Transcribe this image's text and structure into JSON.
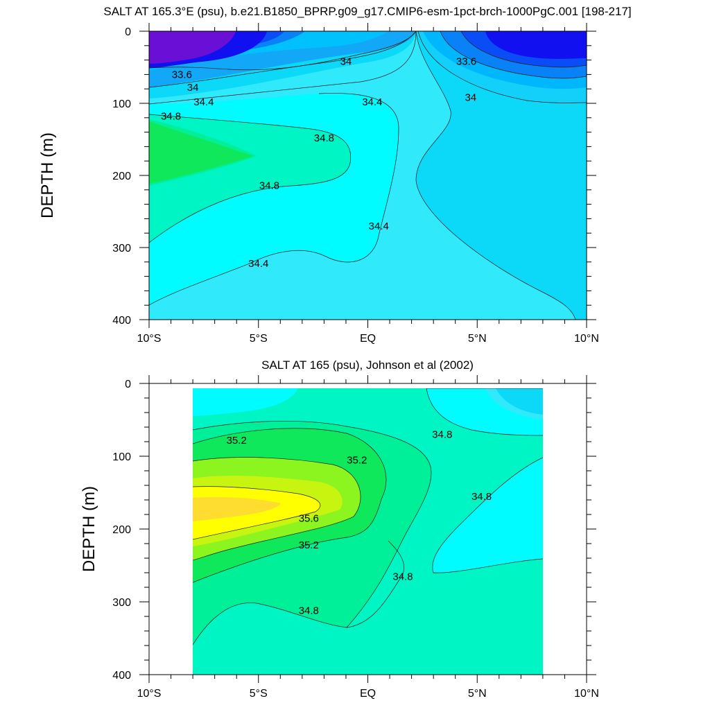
{
  "chart_data": [
    {
      "type": "heatmap",
      "title": "SALT AT 165.3°E (psu), b.e21.B1850_BPRP.g09_g17.CMIP6-esm-1pct-brch-1000PgC.001 [198-217]",
      "ylabel": "DEPTH (m)",
      "xlabel": "",
      "xlim": [
        -10,
        10
      ],
      "ylim": [
        400,
        0
      ],
      "x_ticks": [
        "10°S",
        "5°S",
        "EQ",
        "5°N",
        "10°N"
      ],
      "y_ticks": [
        "0",
        "100",
        "200",
        "300",
        "400"
      ],
      "colors": {
        "lt33_4": "#6a0fd6",
        "33_4": "#1010f0",
        "33_6": "#0a4cf5",
        "33_8": "#0a82f7",
        "34_0": "#12a8f7",
        "34_2": "#00c1fc",
        "34_4": "#0bd9f7",
        "34_6": "#30eafc",
        "34_8": "#00fcff",
        "35_0": "#00f5c4",
        "35_2": "#00f09a",
        "green": "#10e85c"
      },
      "contour_labels": [
        {
          "text": "33.6",
          "x": -8.5,
          "y": 60
        },
        {
          "text": "34",
          "x": -8.0,
          "y": 78
        },
        {
          "text": "34.4",
          "x": -7.5,
          "y": 98
        },
        {
          "text": "34.8",
          "x": -9.0,
          "y": 118
        },
        {
          "text": "34",
          "x": -1.0,
          "y": 42
        },
        {
          "text": "34.4",
          "x": 0.2,
          "y": 98
        },
        {
          "text": "34.8",
          "x": -2.0,
          "y": 148
        },
        {
          "text": "34.8",
          "x": -4.5,
          "y": 214
        },
        {
          "text": "34.4",
          "x": 0.5,
          "y": 270
        },
        {
          "text": "34.4",
          "x": -5.0,
          "y": 322
        },
        {
          "text": "33.6",
          "x": 4.5,
          "y": 42
        },
        {
          "text": "34",
          "x": 4.7,
          "y": 92
        }
      ]
    },
    {
      "type": "heatmap",
      "title": "SALT AT 165 (psu), Johnson et al (2002)",
      "ylabel": "DEPTH (m)",
      "xlabel": "",
      "xlim": [
        -10,
        10
      ],
      "ylim": [
        400,
        0
      ],
      "data_extent_lon": [
        -8,
        8
      ],
      "x_ticks": [
        "10°S",
        "5°S",
        "EQ",
        "5°N",
        "10°N"
      ],
      "y_ticks": [
        "0",
        "100",
        "200",
        "300",
        "400"
      ],
      "colors": {
        "34_4": "#0bd9f7",
        "34_6": "#30eafc",
        "34_8": "#00fcff",
        "35_0": "#00f5c4",
        "35_2": "#00f09a",
        "35_4": "#10e85c",
        "35_6": "#8cf520",
        "35_8": "#c8f510",
        "36_0": "#ffff00",
        "36_2": "#ffdd30"
      },
      "contour_labels": [
        {
          "text": "35.2",
          "x": -6.0,
          "y": 78
        },
        {
          "text": "35.2",
          "x": -0.5,
          "y": 105
        },
        {
          "text": "35.6",
          "x": -2.7,
          "y": 185
        },
        {
          "text": "35.2",
          "x": -2.7,
          "y": 222
        },
        {
          "text": "34.8",
          "x": -2.7,
          "y": 312
        },
        {
          "text": "34.8",
          "x": 3.4,
          "y": 70
        },
        {
          "text": "34.8",
          "x": 5.2,
          "y": 155
        },
        {
          "text": "34.8",
          "x": 1.6,
          "y": 265
        }
      ]
    }
  ]
}
